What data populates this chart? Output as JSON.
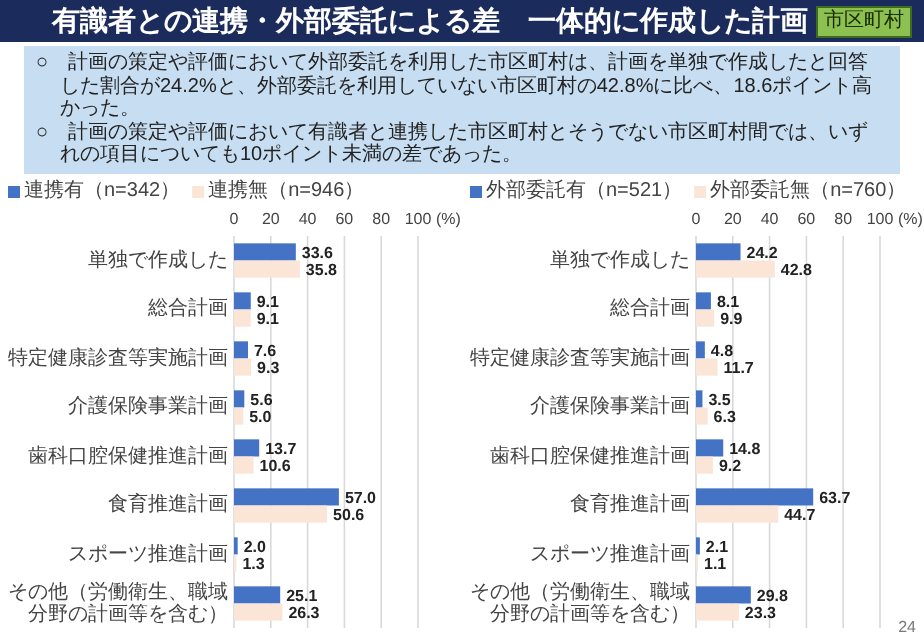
{
  "chart_data": [
    {
      "type": "bar",
      "orientation": "horizontal",
      "title": "有識者との連携・外部委託による差　一体的に作成した計画",
      "annotations": [
        "市区町村",
        "○　計画の策定や評価において外部委託を利用した市区町村は、計画を単独で作成したと回答した割合が24.2%と、外部委託を利用していない市区町村の42.8%に比べ、18.6ポイント高かった。",
        "○　計画の策定や評価において有識者と連携した市区町村とそうでない市区町村間では、いずれの項目についても10ポイント未満の差であった。",
        "24"
      ],
      "categories": [
        "単独で作成した",
        "総合計画",
        "特定健康診査等実施計画",
        "介護保険事業計画",
        "歯科口腔保健推進計画",
        "食育推進計画",
        "スポーツ推進計画",
        "その他（労働衛生、職域分野の計画等を含む）"
      ],
      "series": [
        {
          "name": "連携有（n=342）",
          "color": "#4472c4",
          "values": [
            33.6,
            9.1,
            7.6,
            5.6,
            13.7,
            57.0,
            2.0,
            25.1
          ],
          "value_labels": [
            "33.6",
            "9.1",
            "7.6",
            "5.6",
            "13.7",
            "57.0",
            "2.0",
            "25.1"
          ]
        },
        {
          "name": "連携無（n=946）",
          "color": "#fbe5d6",
          "values": [
            35.8,
            9.1,
            9.3,
            5.0,
            10.6,
            50.6,
            1.3,
            26.3
          ],
          "value_labels": [
            "35.8",
            "9.1",
            "9.3",
            "5.0",
            "10.6",
            "50.6",
            "1.3",
            "26.3"
          ]
        }
      ],
      "xlabel": "(%)",
      "xlim": [
        0,
        100
      ],
      "xticks": [
        0,
        20,
        40,
        60,
        80,
        100
      ],
      "grid": "x",
      "legend": "top"
    },
    {
      "type": "bar",
      "orientation": "horizontal",
      "categories": [
        "単独で作成した",
        "総合計画",
        "特定健康診査等実施計画",
        "介護保険事業計画",
        "歯科口腔保健推進計画",
        "食育推進計画",
        "スポーツ推進計画",
        "その他（労働衛生、職域分野の計画等を含む）"
      ],
      "series": [
        {
          "name": "外部委託有（n=521）",
          "color": "#4472c4",
          "values": [
            24.2,
            8.1,
            4.8,
            3.5,
            14.8,
            63.7,
            2.1,
            29.8
          ],
          "value_labels": [
            "24.2",
            "8.1",
            "4.8",
            "3.5",
            "14.8",
            "63.7",
            "2.1",
            "29.8"
          ]
        },
        {
          "name": "外部委託無（n=760）",
          "color": "#fbe5d6",
          "values": [
            42.8,
            9.9,
            11.7,
            6.3,
            9.2,
            44.7,
            1.1,
            23.3
          ],
          "value_labels": [
            "42.8",
            "9.9",
            "11.7",
            "6.3",
            "9.2",
            "44.7",
            "1.1",
            "23.3"
          ]
        }
      ],
      "xlabel": "(%)",
      "xlim": [
        0,
        100
      ],
      "xticks": [
        0,
        20,
        40,
        60,
        80,
        100
      ],
      "grid": "x",
      "legend": "top"
    }
  ]
}
